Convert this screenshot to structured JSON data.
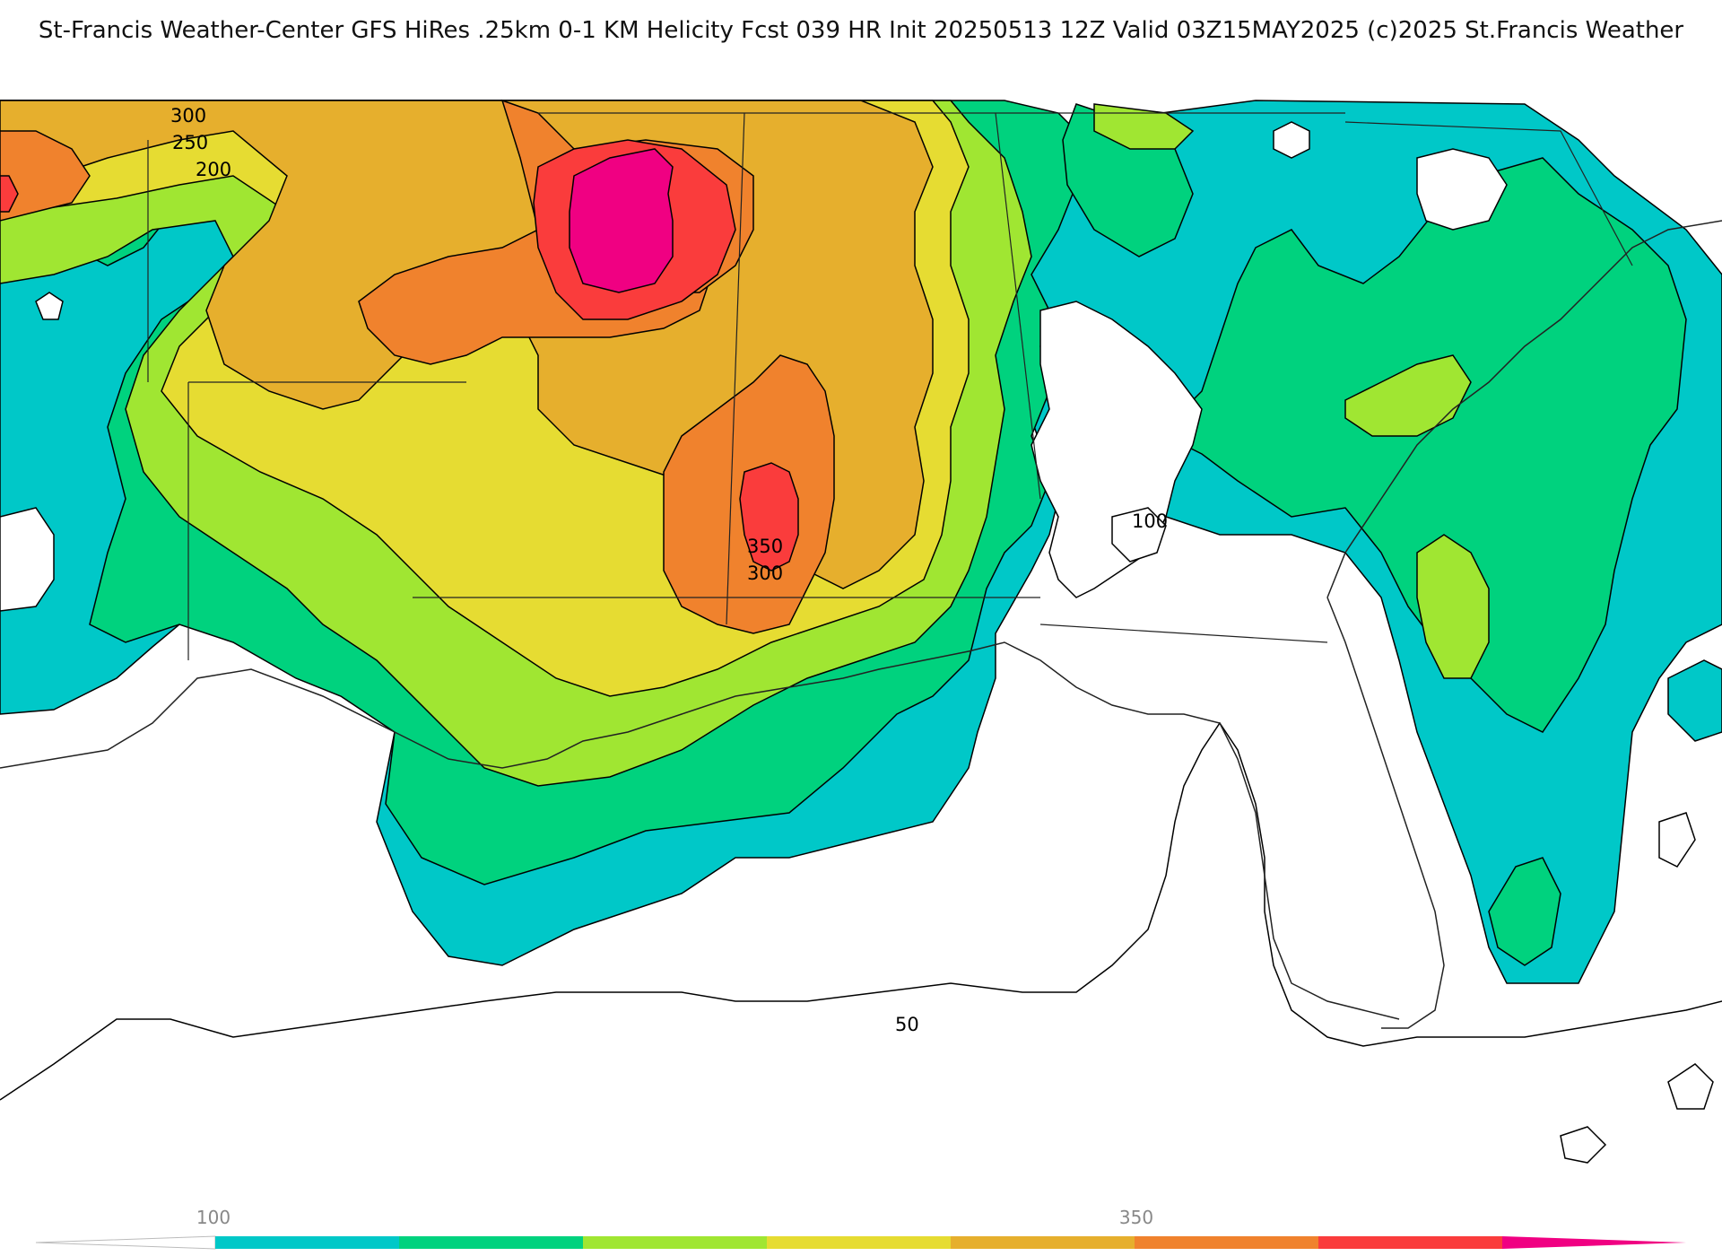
{
  "header": {
    "title": "St-Francis Weather-Center GFS HiRes .25km 0-1 KM Helicity Fcst 039 HR Init 20250513 12Z  Valid 03Z15MAY2025    (c)2025 St.Francis Weather"
  },
  "contour_labels": [
    "300",
    "250",
    "200",
    "100",
    "350",
    "300",
    "50"
  ],
  "colorbar": {
    "tick_labels": [
      "100",
      "350"
    ],
    "colors": [
      "#ffffff",
      "#00c8c8",
      "#00d27e",
      "#a0e632",
      "#e6dc32",
      "#e6af2d",
      "#f0822d",
      "#fa3c3c",
      "#f00082"
    ]
  },
  "palette": {
    "c100": "#00c8c8",
    "c150": "#00d27e",
    "c200": "#a0e632",
    "c250": "#e6dc32",
    "c300": "#e6af2d",
    "c350": "#f0822d",
    "c400": "#fa3c3c",
    "c450": "#f00082"
  }
}
